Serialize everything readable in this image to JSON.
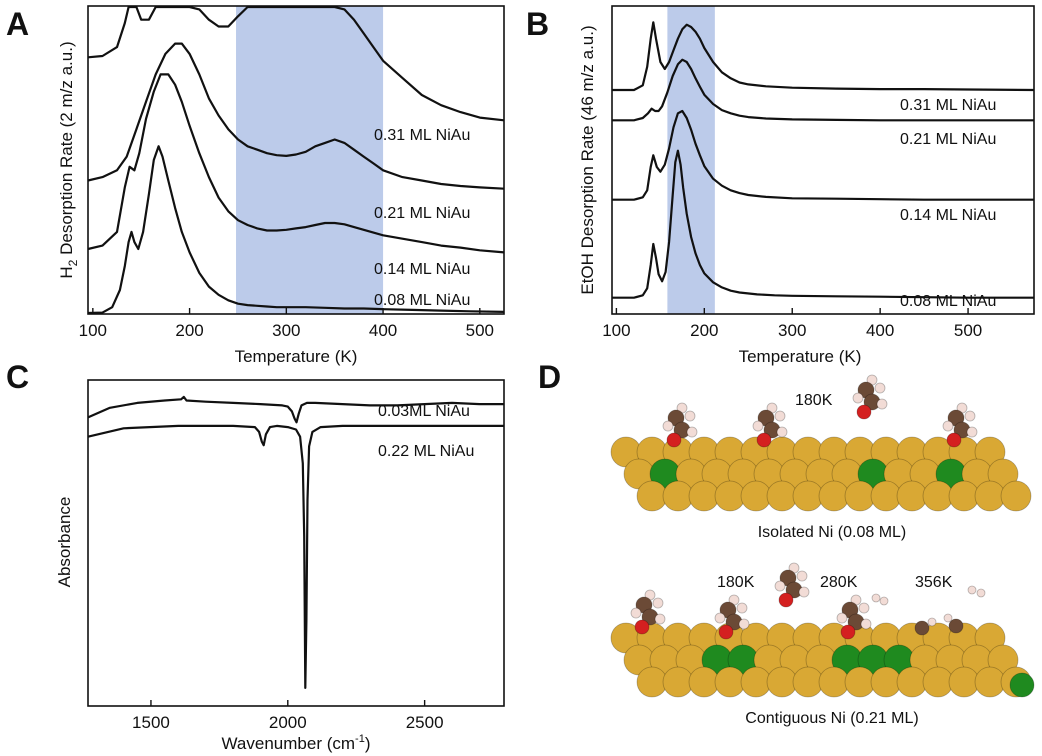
{
  "panels": {
    "a": "A",
    "b": "B",
    "c": "C",
    "d": "D"
  },
  "chart_data": [
    {
      "id": "A",
      "type": "line",
      "ylabel_prefix": "H",
      "ylabel_sub": "2",
      "ylabel_rest": " Desorption Rate (2 m/z a.u.)",
      "xlabel": "Temperature (K)",
      "xlim": [
        95,
        525
      ],
      "ylim": [
        0,
        4.5
      ],
      "xticks": [
        100,
        200,
        300,
        400,
        500
      ],
      "highlight": [
        248,
        400
      ],
      "series": [
        {
          "name": "0.31 ML NiAu",
          "offset": 2.75,
          "x": [
            95,
            110,
            125,
            133,
            137,
            141,
            145,
            150,
            158,
            165,
            175,
            185,
            192,
            200,
            210,
            220,
            230,
            240,
            250,
            260,
            270,
            280,
            290,
            300,
            310,
            320,
            330,
            340,
            350,
            360,
            370,
            380,
            390,
            400,
            420,
            440,
            460,
            480,
            500,
            525
          ],
          "y": [
            1.0,
            1.02,
            1.15,
            1.5,
            2.0,
            2.35,
            2.0,
            1.55,
            1.55,
            1.75,
            2.0,
            2.15,
            2.1,
            1.95,
            1.7,
            1.55,
            1.45,
            1.45,
            1.6,
            1.85,
            2.1,
            2.35,
            2.3,
            2.1,
            1.95,
            1.85,
            1.85,
            1.9,
            1.85,
            1.7,
            1.55,
            1.35,
            1.15,
            0.95,
            0.7,
            0.45,
            0.3,
            0.2,
            0.12,
            0.08
          ]
        },
        {
          "name": "0.21 ML NiAu",
          "offset": 1.95,
          "x": [
            95,
            110,
            125,
            135,
            145,
            155,
            165,
            175,
            185,
            192,
            200,
            210,
            220,
            230,
            240,
            250,
            260,
            270,
            280,
            290,
            300,
            310,
            320,
            330,
            340,
            350,
            360,
            370,
            380,
            390,
            400,
            420,
            440,
            460,
            480,
            500,
            525
          ],
          "y": [
            0.0,
            0.05,
            0.15,
            0.35,
            0.75,
            1.15,
            1.55,
            1.85,
            2.0,
            2.0,
            1.85,
            1.55,
            1.2,
            0.95,
            0.75,
            0.6,
            0.5,
            0.45,
            0.4,
            0.37,
            0.36,
            0.38,
            0.42,
            0.5,
            0.55,
            0.6,
            0.55,
            0.45,
            0.35,
            0.25,
            0.15,
            0.05,
            0.0,
            -0.05,
            -0.08,
            -0.1,
            -0.12
          ]
        },
        {
          "name": "0.14 ML NiAu",
          "offset": 0.95,
          "x": [
            95,
            110,
            125,
            133,
            138,
            143,
            148,
            155,
            163,
            170,
            178,
            185,
            192,
            200,
            210,
            220,
            230,
            240,
            250,
            260,
            270,
            280,
            290,
            300,
            310,
            320,
            330,
            340,
            350,
            360,
            370,
            380,
            390,
            400,
            420,
            440,
            460,
            480,
            500,
            525
          ],
          "y": [
            0.0,
            0.05,
            0.25,
            0.9,
            1.2,
            1.15,
            1.4,
            1.9,
            2.3,
            2.55,
            2.55,
            2.4,
            2.15,
            1.8,
            1.4,
            1.05,
            0.75,
            0.55,
            0.42,
            0.35,
            0.3,
            0.27,
            0.27,
            0.28,
            0.3,
            0.32,
            0.35,
            0.38,
            0.38,
            0.36,
            0.32,
            0.28,
            0.24,
            0.2,
            0.15,
            0.1,
            0.05,
            0.02,
            -0.02,
            -0.05
          ]
        },
        {
          "name": "0.08 ML NiAu",
          "offset": 0.0,
          "x": [
            95,
            110,
            120,
            128,
            133,
            137,
            140,
            143,
            147,
            152,
            158,
            163,
            168,
            172,
            178,
            185,
            192,
            200,
            210,
            220,
            230,
            240,
            250,
            260,
            270,
            280,
            290,
            300,
            320,
            340,
            360,
            380,
            400,
            430,
            460,
            490,
            525
          ],
          "y": [
            0.0,
            0.02,
            0.1,
            0.35,
            0.7,
            1.05,
            1.2,
            1.05,
            0.95,
            1.2,
            1.75,
            2.25,
            2.45,
            2.3,
            1.95,
            1.55,
            1.2,
            0.9,
            0.6,
            0.4,
            0.28,
            0.2,
            0.15,
            0.13,
            0.12,
            0.11,
            0.1,
            0.1,
            0.1,
            0.09,
            0.08,
            0.08,
            0.07,
            0.06,
            0.05,
            0.04,
            0.03
          ]
        }
      ]
    },
    {
      "id": "B",
      "type": "line",
      "ylabel": "EtOH Desorption Rate (46 m/z a.u.)",
      "xlabel": "Temperature (K)",
      "xlim": [
        95,
        575
      ],
      "ylim": [
        0,
        6.6
      ],
      "xticks": [
        100,
        200,
        300,
        400,
        500
      ],
      "highlight": [
        158,
        212
      ],
      "series": [
        {
          "name": "0.31 ML NiAu",
          "offset": 4.8,
          "x": [
            95,
            120,
            130,
            135,
            139,
            142,
            145,
            150,
            155,
            160,
            165,
            170,
            175,
            180,
            185,
            190,
            195,
            200,
            210,
            220,
            230,
            240,
            250,
            270,
            300,
            350,
            400,
            450,
            500,
            575
          ],
          "y": [
            0.0,
            0.0,
            0.1,
            0.5,
            1.1,
            1.45,
            1.1,
            0.6,
            0.45,
            0.6,
            0.85,
            1.1,
            1.3,
            1.4,
            1.35,
            1.25,
            1.1,
            0.9,
            0.6,
            0.38,
            0.25,
            0.16,
            0.12,
            0.08,
            0.05,
            0.03,
            0.02,
            0.02,
            0.01,
            0.0
          ]
        },
        {
          "name": "0.21 ML NiAu",
          "offset": 4.15,
          "x": [
            95,
            120,
            130,
            136,
            140,
            144,
            148,
            152,
            158,
            164,
            170,
            175,
            180,
            185,
            190,
            195,
            200,
            210,
            220,
            230,
            240,
            250,
            270,
            300,
            350,
            400,
            450,
            500,
            575
          ],
          "y": [
            0.0,
            0.0,
            0.05,
            0.15,
            0.25,
            0.2,
            0.2,
            0.3,
            0.6,
            0.95,
            1.2,
            1.3,
            1.25,
            1.1,
            0.9,
            0.72,
            0.55,
            0.35,
            0.22,
            0.15,
            0.1,
            0.07,
            0.04,
            0.02,
            0.01,
            0.0,
            0.0,
            0.0,
            0.0
          ]
        },
        {
          "name": "0.14 ML NiAu",
          "offset": 2.45,
          "x": [
            95,
            120,
            130,
            135,
            139,
            142,
            146,
            150,
            155,
            160,
            165,
            170,
            175,
            180,
            185,
            190,
            195,
            200,
            210,
            220,
            230,
            240,
            250,
            270,
            300,
            350,
            400,
            450,
            500,
            575
          ],
          "y": [
            0.0,
            0.0,
            0.05,
            0.2,
            0.7,
            0.95,
            0.7,
            0.6,
            0.75,
            1.1,
            1.55,
            1.85,
            1.9,
            1.75,
            1.5,
            1.2,
            0.95,
            0.72,
            0.45,
            0.3,
            0.2,
            0.14,
            0.1,
            0.06,
            0.03,
            0.02,
            0.01,
            0.0,
            0.0,
            0.0
          ]
        },
        {
          "name": "0.08 ML NiAu",
          "offset": 0.35,
          "x": [
            95,
            120,
            130,
            135,
            139,
            142,
            145,
            148,
            152,
            156,
            160,
            164,
            167,
            170,
            173,
            176,
            180,
            185,
            190,
            195,
            200,
            210,
            220,
            230,
            240,
            260,
            280,
            300,
            350,
            400,
            450,
            500,
            575
          ],
          "y": [
            0.0,
            0.0,
            0.05,
            0.2,
            0.7,
            1.15,
            0.85,
            0.5,
            0.35,
            0.55,
            1.2,
            2.2,
            2.9,
            3.15,
            2.85,
            2.35,
            1.8,
            1.3,
            0.95,
            0.7,
            0.52,
            0.33,
            0.22,
            0.15,
            0.11,
            0.07,
            0.05,
            0.04,
            0.03,
            0.02,
            0.01,
            0.0,
            0.0
          ]
        }
      ]
    },
    {
      "id": "C",
      "type": "line",
      "ylabel": "Absorbance",
      "xlabel_main": "Wavenumber (cm",
      "xlabel_sup": "-1",
      "xlabel_end": ")",
      "xlim": [
        1270,
        2790
      ],
      "ylim": [
        -12.5,
        1.0
      ],
      "xticks": [
        1500,
        2000,
        2500
      ],
      "series": [
        {
          "name": "0.03ML NiAu",
          "offset": 0.0,
          "x": [
            1270,
            1350,
            1450,
            1550,
            1610,
            1620,
            1630,
            1700,
            1800,
            1900,
            1980,
            2000,
            2015,
            2025,
            2032,
            2040,
            2050,
            2070,
            2100,
            2200,
            2300,
            2400,
            2500,
            2600,
            2700,
            2790
          ],
          "y": [
            -0.55,
            -0.15,
            0.05,
            0.15,
            0.2,
            0.3,
            0.15,
            0.1,
            0.05,
            0.0,
            -0.05,
            -0.1,
            -0.3,
            -0.6,
            -0.75,
            -0.4,
            -0.05,
            0.05,
            0.05,
            0.0,
            -0.05,
            -0.05,
            0.0,
            0.05,
            0.0,
            0.0
          ]
        },
        {
          "name": "0.22 ML NiAu",
          "offset": -0.95,
          "x": [
            1270,
            1400,
            1600,
            1800,
            1880,
            1895,
            1905,
            1912,
            1920,
            1935,
            1960,
            2000,
            2030,
            2045,
            2055,
            2060,
            2064,
            2068,
            2072,
            2078,
            2090,
            2120,
            2200,
            2300,
            2500,
            2700,
            2790
          ],
          "y": [
            -0.4,
            -0.05,
            0.05,
            0.05,
            0.0,
            -0.2,
            -0.6,
            -0.75,
            -0.3,
            0.0,
            0.05,
            0.0,
            -0.1,
            -0.4,
            -1.5,
            -4.5,
            -10.8,
            -8.0,
            -3.0,
            -0.8,
            -0.2,
            0.0,
            0.05,
            0.05,
            0.05,
            0.05,
            0.05
          ]
        }
      ]
    }
  ],
  "panel_d": {
    "top_temp": "180K",
    "top_caption": "Isolated Ni (0.08 ML)",
    "bottom_temps": [
      "180K",
      "280K",
      "356K"
    ],
    "bottom_caption": "Contiguous Ni (0.21 ML)"
  },
  "colors": {
    "band": "#8fa8dc",
    "gold": "#d9a834",
    "nickel": "#1f8a1f",
    "carbon": "#6b4a36",
    "oxygen": "#d42020",
    "hydrogen": "#f2dcd6"
  }
}
